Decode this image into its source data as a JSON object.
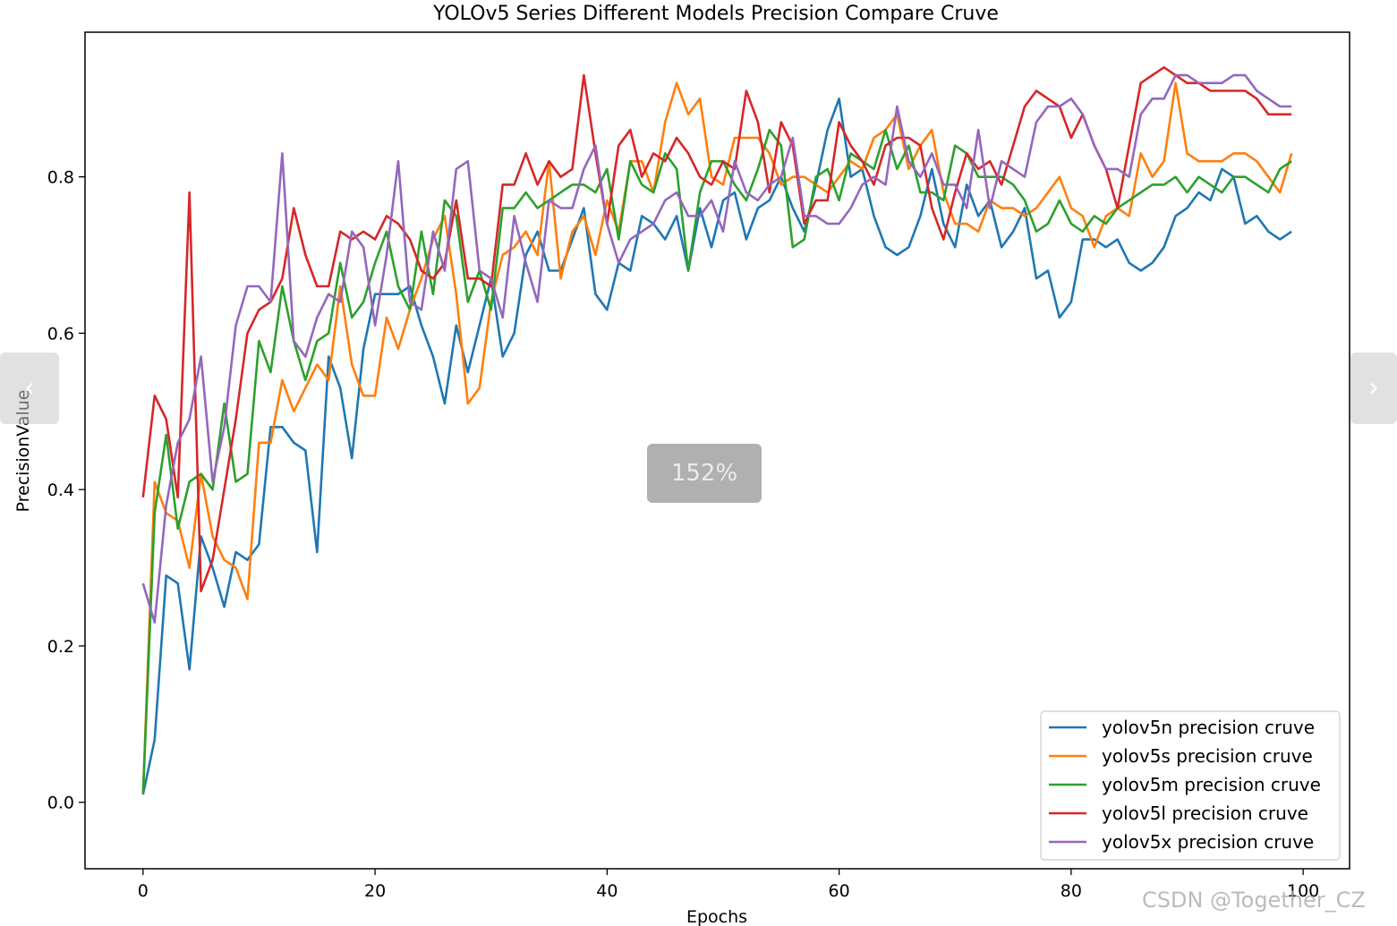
{
  "chart_data": {
    "type": "line",
    "title": "YOLOv5 Series Different Models Precision Compare Cruve",
    "xlabel": "Epochs",
    "ylabel": "PrecisionValue",
    "xlim": [
      -5,
      104
    ],
    "ylim": [
      -0.085,
      0.985
    ],
    "xticks": [
      0,
      20,
      40,
      60,
      80,
      100
    ],
    "yticks": [
      0.0,
      0.2,
      0.4,
      0.6,
      0.8
    ],
    "xtick_labels": [
      "0",
      "20",
      "40",
      "60",
      "80",
      "100"
    ],
    "ytick_labels": [
      "0.0",
      "0.2",
      "0.4",
      "0.6",
      "0.8"
    ],
    "grid": false,
    "legend_position": "lower-right",
    "x": [
      0,
      1,
      2,
      3,
      4,
      5,
      6,
      7,
      8,
      9,
      10,
      11,
      12,
      13,
      14,
      15,
      16,
      17,
      18,
      19,
      20,
      21,
      22,
      23,
      24,
      25,
      26,
      27,
      28,
      29,
      30,
      31,
      32,
      33,
      34,
      35,
      36,
      37,
      38,
      39,
      40,
      41,
      42,
      43,
      44,
      45,
      46,
      47,
      48,
      49,
      50,
      51,
      52,
      53,
      54,
      55,
      56,
      57,
      58,
      59,
      60,
      61,
      62,
      63,
      64,
      65,
      66,
      67,
      68,
      69,
      70,
      71,
      72,
      73,
      74,
      75,
      76,
      77,
      78,
      79,
      80,
      81,
      82,
      83,
      84,
      85,
      86,
      87,
      88,
      89,
      90,
      91,
      92,
      93,
      94,
      95,
      96,
      97,
      98,
      99
    ],
    "series": [
      {
        "name": "yolov5n precision cruve",
        "color": "#1f77b4",
        "values": [
          0.01,
          0.08,
          0.29,
          0.28,
          0.17,
          0.34,
          0.3,
          0.25,
          0.32,
          0.31,
          0.33,
          0.48,
          0.48,
          0.46,
          0.45,
          0.32,
          0.57,
          0.53,
          0.44,
          0.58,
          0.65,
          0.65,
          0.65,
          0.66,
          0.61,
          0.57,
          0.51,
          0.61,
          0.55,
          0.61,
          0.67,
          0.57,
          0.6,
          0.7,
          0.73,
          0.68,
          0.68,
          0.72,
          0.76,
          0.65,
          0.63,
          0.69,
          0.68,
          0.75,
          0.74,
          0.72,
          0.75,
          0.68,
          0.76,
          0.71,
          0.77,
          0.78,
          0.72,
          0.76,
          0.77,
          0.8,
          0.76,
          0.73,
          0.79,
          0.86,
          0.9,
          0.8,
          0.81,
          0.75,
          0.71,
          0.7,
          0.71,
          0.75,
          0.81,
          0.74,
          0.71,
          0.79,
          0.75,
          0.77,
          0.71,
          0.73,
          0.76,
          0.67,
          0.68,
          0.62,
          0.64,
          0.72,
          0.72,
          0.71,
          0.72,
          0.69,
          0.68,
          0.69,
          0.71,
          0.75,
          0.76,
          0.78,
          0.77,
          0.81,
          0.8,
          0.74,
          0.75,
          0.73,
          0.72,
          0.73
        ]
      },
      {
        "name": "yolov5s precision cruve",
        "color": "#ff7f0e",
        "values": [
          0.01,
          0.41,
          0.37,
          0.36,
          0.3,
          0.42,
          0.34,
          0.31,
          0.3,
          0.26,
          0.46,
          0.46,
          0.54,
          0.5,
          0.53,
          0.56,
          0.54,
          0.66,
          0.56,
          0.52,
          0.52,
          0.62,
          0.58,
          0.63,
          0.67,
          0.72,
          0.75,
          0.65,
          0.51,
          0.53,
          0.64,
          0.7,
          0.71,
          0.73,
          0.7,
          0.82,
          0.67,
          0.73,
          0.75,
          0.7,
          0.77,
          0.73,
          0.82,
          0.82,
          0.78,
          0.87,
          0.92,
          0.88,
          0.9,
          0.8,
          0.79,
          0.85,
          0.85,
          0.85,
          0.83,
          0.79,
          0.8,
          0.8,
          0.79,
          0.78,
          0.8,
          0.82,
          0.81,
          0.85,
          0.86,
          0.88,
          0.81,
          0.84,
          0.86,
          0.78,
          0.74,
          0.74,
          0.73,
          0.77,
          0.76,
          0.76,
          0.75,
          0.76,
          0.78,
          0.8,
          0.76,
          0.75,
          0.71,
          0.75,
          0.76,
          0.75,
          0.83,
          0.8,
          0.82,
          0.92,
          0.83,
          0.82,
          0.82,
          0.82,
          0.83,
          0.83,
          0.82,
          0.8,
          0.78,
          0.83
        ]
      },
      {
        "name": "yolov5m precision cruve",
        "color": "#2ca02c",
        "values": [
          0.01,
          0.37,
          0.47,
          0.35,
          0.41,
          0.42,
          0.4,
          0.51,
          0.41,
          0.42,
          0.59,
          0.55,
          0.66,
          0.59,
          0.54,
          0.59,
          0.6,
          0.69,
          0.62,
          0.64,
          0.69,
          0.73,
          0.66,
          0.63,
          0.73,
          0.65,
          0.77,
          0.75,
          0.64,
          0.68,
          0.63,
          0.76,
          0.76,
          0.78,
          0.76,
          0.77,
          0.78,
          0.79,
          0.79,
          0.78,
          0.81,
          0.72,
          0.82,
          0.79,
          0.78,
          0.83,
          0.81,
          0.68,
          0.78,
          0.82,
          0.82,
          0.79,
          0.77,
          0.81,
          0.86,
          0.84,
          0.71,
          0.72,
          0.8,
          0.81,
          0.77,
          0.83,
          0.82,
          0.81,
          0.86,
          0.81,
          0.84,
          0.78,
          0.78,
          0.77,
          0.84,
          0.83,
          0.8,
          0.8,
          0.8,
          0.79,
          0.77,
          0.73,
          0.74,
          0.77,
          0.74,
          0.73,
          0.75,
          0.74,
          0.76,
          0.77,
          0.78,
          0.79,
          0.79,
          0.8,
          0.78,
          0.8,
          0.79,
          0.78,
          0.8,
          0.8,
          0.79,
          0.78,
          0.81,
          0.82
        ]
      },
      {
        "name": "yolov5l precision cruve",
        "color": "#d62728",
        "values": [
          0.39,
          0.52,
          0.49,
          0.39,
          0.78,
          0.27,
          0.31,
          0.4,
          0.49,
          0.6,
          0.63,
          0.64,
          0.67,
          0.76,
          0.7,
          0.66,
          0.66,
          0.73,
          0.72,
          0.73,
          0.72,
          0.75,
          0.74,
          0.72,
          0.68,
          0.67,
          0.69,
          0.77,
          0.67,
          0.67,
          0.66,
          0.79,
          0.79,
          0.83,
          0.79,
          0.82,
          0.8,
          0.81,
          0.93,
          0.83,
          0.74,
          0.84,
          0.86,
          0.8,
          0.83,
          0.82,
          0.85,
          0.83,
          0.8,
          0.79,
          0.82,
          0.81,
          0.91,
          0.87,
          0.78,
          0.87,
          0.84,
          0.74,
          0.77,
          0.77,
          0.87,
          0.84,
          0.82,
          0.79,
          0.84,
          0.85,
          0.85,
          0.84,
          0.76,
          0.72,
          0.78,
          0.83,
          0.81,
          0.82,
          0.79,
          0.84,
          0.89,
          0.91,
          0.9,
          0.89,
          0.85,
          0.88,
          0.84,
          0.81,
          0.76,
          0.84,
          0.92,
          0.93,
          0.94,
          0.93,
          0.92,
          0.92,
          0.91,
          0.91,
          0.91,
          0.91,
          0.9,
          0.88,
          0.88,
          0.88
        ]
      },
      {
        "name": "yolov5x precision cruve",
        "color": "#9467bd",
        "values": [
          0.28,
          0.23,
          0.38,
          0.46,
          0.49,
          0.57,
          0.41,
          0.48,
          0.61,
          0.66,
          0.66,
          0.64,
          0.83,
          0.59,
          0.57,
          0.62,
          0.65,
          0.64,
          0.73,
          0.71,
          0.61,
          0.7,
          0.82,
          0.64,
          0.63,
          0.73,
          0.68,
          0.81,
          0.82,
          0.68,
          0.67,
          0.62,
          0.75,
          0.69,
          0.64,
          0.77,
          0.76,
          0.76,
          0.81,
          0.84,
          0.74,
          0.69,
          0.72,
          0.73,
          0.74,
          0.77,
          0.78,
          0.75,
          0.75,
          0.77,
          0.73,
          0.82,
          0.78,
          0.77,
          0.79,
          0.8,
          0.85,
          0.75,
          0.75,
          0.74,
          0.74,
          0.76,
          0.79,
          0.8,
          0.79,
          0.89,
          0.82,
          0.8,
          0.83,
          0.79,
          0.79,
          0.76,
          0.86,
          0.76,
          0.82,
          0.81,
          0.8,
          0.87,
          0.89,
          0.89,
          0.9,
          0.88,
          0.84,
          0.81,
          0.81,
          0.8,
          0.88,
          0.9,
          0.9,
          0.93,
          0.93,
          0.92,
          0.92,
          0.92,
          0.93,
          0.93,
          0.91,
          0.9,
          0.89,
          0.89
        ]
      }
    ]
  },
  "overlay": {
    "zoom_label": "152%",
    "prev_icon": "‹",
    "next_icon": "›",
    "watermark": "CSDN @Together_CZ"
  }
}
